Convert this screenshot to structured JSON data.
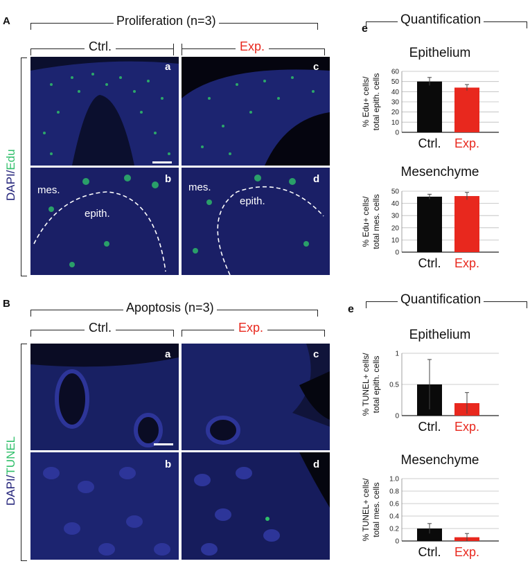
{
  "panelA": {
    "letter": "A",
    "header": "Proliferation (n=3)",
    "ctrl": "Ctrl.",
    "exp": "Exp.",
    "side_label_dapi": "DAPI/",
    "side_label_stain": "Edu",
    "labels": {
      "a": "a",
      "b": "b",
      "c": "c",
      "d": "d"
    },
    "mes": "mes.",
    "epith": "epith.",
    "quant_letter": "e",
    "quant_title": "Quantification"
  },
  "panelB": {
    "letter": "B",
    "header": "Apoptosis (n=3)",
    "ctrl": "Ctrl.",
    "exp": "Exp.",
    "side_label_dapi": "DAPI/",
    "side_label_stain": "TUNEL",
    "labels": {
      "a": "a",
      "b": "b",
      "c": "c",
      "d": "d"
    },
    "quant_letter": "e",
    "quant_title": "Quantification"
  },
  "colors": {
    "ctrl": "#0a0a0a",
    "exp": "#e8281e",
    "dapi": "#23237a",
    "edu": "#2fbf6a"
  },
  "chart_data": [
    {
      "type": "bar",
      "title": "Epithelium",
      "ylabel": "% Edu+ cells/ total epith. cells",
      "categories": [
        "Ctrl.",
        "Exp."
      ],
      "values": [
        50,
        44
      ],
      "errors": [
        4,
        3
      ],
      "ylim": [
        0,
        60
      ],
      "yticks": [
        "0",
        "10",
        "20",
        "30",
        "40",
        "50",
        "60"
      ],
      "grid": true
    },
    {
      "type": "bar",
      "title": "Mesenchyme",
      "ylabel": "% Edu+ cells/ total mes. cells",
      "categories": [
        "Ctrl.",
        "Exp."
      ],
      "values": [
        45.5,
        46
      ],
      "errors": [
        2,
        3
      ],
      "ylim": [
        0,
        50
      ],
      "yticks": [
        "0",
        "10",
        "20",
        "30",
        "40",
        "50"
      ],
      "grid": true
    },
    {
      "type": "bar",
      "title": "Epithelium",
      "ylabel": "% TUNEL+ cells/ total epith. cells",
      "categories": [
        "Ctrl.",
        "Exp."
      ],
      "values": [
        0.5,
        0.2
      ],
      "errors": [
        0.4,
        0.17
      ],
      "ylim": [
        0,
        1.0
      ],
      "yticks": [
        "0",
        "0.5",
        "1"
      ],
      "grid": true
    },
    {
      "type": "bar",
      "title": "Mesenchyme",
      "ylabel": "% TUNEL+ cells/ total mes. cells",
      "categories": [
        "Ctrl.",
        "Exp."
      ],
      "values": [
        0.2,
        0.06
      ],
      "errors": [
        0.08,
        0.06
      ],
      "ylim": [
        0,
        1.0
      ],
      "yticks": [
        "0",
        "0.2",
        "0.4",
        "0.6",
        "0.8",
        "1.0"
      ],
      "grid": true
    }
  ]
}
